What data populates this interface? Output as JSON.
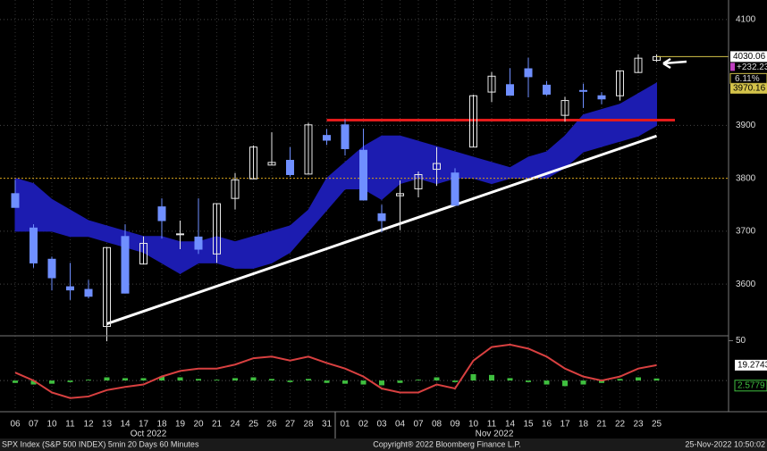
{
  "chart_data": [
    {
      "type": "candlestick",
      "categories": [
        "06",
        "07",
        "10",
        "11",
        "12",
        "13",
        "14",
        "17",
        "18",
        "19",
        "20",
        "21",
        "24",
        "25",
        "26",
        "27",
        "28",
        "31",
        "01",
        "02",
        "03",
        "04",
        "07",
        "08",
        "09",
        "10",
        "11",
        "14",
        "15",
        "16",
        "17",
        "18",
        "21",
        "22",
        "23",
        "25"
      ],
      "month_labels": [
        "Oct 2022",
        "Nov 2022"
      ],
      "open": [
        3771,
        3706,
        3647,
        3595,
        3590,
        3520,
        3690,
        3638,
        3746,
        3695,
        3689,
        3657,
        3762,
        3799,
        3825,
        3834,
        3808,
        3881,
        3901,
        3853,
        3733,
        3767,
        3780,
        3817,
        3810,
        3859,
        3963,
        3977,
        4007,
        3976,
        3919,
        3966,
        3956,
        3956,
        4000,
        4023
      ],
      "high": [
        3797,
        3713,
        3652,
        3640,
        3608,
        3670,
        3713,
        3690,
        3762,
        3720,
        3762,
        3753,
        3810,
        3862,
        3887,
        3859,
        3905,
        3893,
        3911,
        3894,
        3750,
        3796,
        3813,
        3859,
        3819,
        3958,
        4001,
        4008,
        4028,
        3984,
        3954,
        3979,
        3963,
        4004,
        4034,
        4034
      ],
      "low": [
        3745,
        3631,
        3588,
        3570,
        3573,
        3492,
        3584,
        3638,
        3686,
        3666,
        3657,
        3640,
        3741,
        3799,
        3825,
        3803,
        3808,
        3863,
        3843,
        3758,
        3698,
        3702,
        3764,
        3786,
        3748,
        3859,
        3944,
        3957,
        3953,
        3956,
        3907,
        3933,
        3940,
        3947,
        3999,
        4020
      ],
      "close": [
        3745,
        3640,
        3612,
        3589,
        3577,
        3669,
        3583,
        3677,
        3720,
        3695,
        3666,
        3752,
        3797,
        3859,
        3830,
        3807,
        3901,
        3872,
        3856,
        3759,
        3720,
        3771,
        3807,
        3828,
        3749,
        3956,
        3993,
        3957,
        3992,
        3959,
        3947,
        3965,
        3950,
        4003,
        4027,
        4030
      ],
      "up_color": "#e8e8e8",
      "down_color": "#6f8fff",
      "cloud": {
        "color": "#1c1cb0",
        "upper": [
          3800,
          3790,
          3760,
          3740,
          3720,
          3710,
          3700,
          3690,
          3690,
          3680,
          3680,
          3690,
          3680,
          3690,
          3700,
          3710,
          3740,
          3800,
          3830,
          3860,
          3880,
          3880,
          3870,
          3860,
          3850,
          3840,
          3830,
          3820,
          3840,
          3850,
          3880,
          3920,
          3930,
          3940,
          3960,
          3980
        ],
        "lower": [
          3700,
          3700,
          3700,
          3690,
          3690,
          3680,
          3670,
          3660,
          3640,
          3620,
          3640,
          3640,
          3630,
          3630,
          3640,
          3660,
          3700,
          3740,
          3780,
          3780,
          3760,
          3790,
          3800,
          3790,
          3800,
          3800,
          3790,
          3800,
          3800,
          3800,
          3820,
          3850,
          3860,
          3870,
          3880,
          3900
        ]
      },
      "lines": [
        {
          "color": "#e31b1b",
          "x": [
            17,
            36
          ],
          "values": [
            3910,
            3910
          ],
          "width": 3
        },
        {
          "color": "#ffffff",
          "x": [
            5,
            35
          ],
          "values": [
            3525,
            3880
          ],
          "width": 3
        },
        {
          "color": "#d4a017",
          "x": [
            -1,
            39
          ],
          "values": [
            3800,
            3800
          ],
          "width": 1,
          "dash": true
        }
      ],
      "ylim": [
        3504,
        4137
      ],
      "yticks": [
        3600,
        3700,
        3800,
        3900,
        4100
      ],
      "grid": true,
      "last": 4030.06,
      "change": {
        "value": 232.23,
        "label": "+232.23"
      },
      "change_pct": {
        "value": 6.11,
        "label": "6.11%"
      },
      "level": 3970.16
    },
    {
      "type": "line",
      "values": [
        10,
        0,
        -15,
        -22,
        -20,
        -12,
        -8,
        -5,
        5,
        12,
        15,
        15,
        20,
        28,
        30,
        25,
        30,
        22,
        15,
        5,
        -10,
        -15,
        -15,
        -5,
        -10,
        25,
        42,
        45,
        40,
        30,
        15,
        5,
        0,
        5,
        15,
        19.2743
      ],
      "color": "#d84040",
      "hist": [
        -3,
        -5,
        -4,
        -2,
        1,
        4,
        3,
        3,
        5,
        4,
        2,
        1,
        3,
        4,
        2,
        -2,
        2,
        -3,
        -4,
        -5,
        -6,
        -3,
        1,
        4,
        -2,
        8,
        7,
        3,
        -2,
        -5,
        -7,
        -5,
        -3,
        2,
        4,
        2.5779
      ],
      "hist_color": "#3fbf3f",
      "ylim": [
        -38,
        55
      ],
      "yticks": [
        50
      ]
    }
  ],
  "footer": {
    "left": "SPX Index (S&P 500 INDEX) 5min 20 Days 60 Minutes",
    "center": "Copyright® 2022 Bloomberg Finance L.P.",
    "right": "25-Nov-2022 10:50:02"
  }
}
